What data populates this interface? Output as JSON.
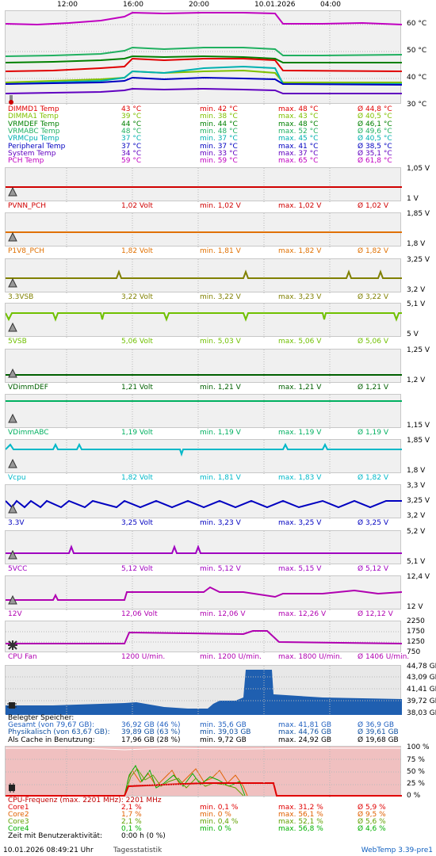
{
  "time_axis": [
    "12:00",
    "16:00",
    "20:00",
    "10.01.2026",
    "04:00"
  ],
  "temp": {
    "y_labels": [
      "60 °C",
      "50 °C",
      "40 °C",
      "30 °C"
    ],
    "rows": [
      {
        "name": "DIMMD1 Temp",
        "cur": "43 °C",
        "min": "min. 42 °C",
        "max": "max. 48 °C",
        "avg": "Ø 44,8 °C",
        "color": "#e00000"
      },
      {
        "name": "DIMMA1 Temp",
        "cur": "39 °C",
        "min": "min. 38 °C",
        "max": "max. 43 °C",
        "avg": "Ø 40,5 °C",
        "color": "#7fc000"
      },
      {
        "name": "VRMDEF Temp",
        "cur": "44 °C",
        "min": "min. 44 °C",
        "max": "max. 48 °C",
        "avg": "Ø 46,1 °C",
        "color": "#008000"
      },
      {
        "name": "VRMABC Temp",
        "cur": "48 °C",
        "min": "min. 48 °C",
        "max": "max. 52 °C",
        "avg": "Ø 49,6 °C",
        "color": "#20b060"
      },
      {
        "name": "VRMCpu Temp",
        "cur": "37 °C",
        "min": "min. 37 °C",
        "max": "max. 45 °C",
        "avg": "Ø 40,5 °C",
        "color": "#00b0b0"
      },
      {
        "name": "Peripheral Temp",
        "cur": "37 °C",
        "min": "min. 37 °C",
        "max": "max. 41 °C",
        "avg": "Ø 38,5 °C",
        "color": "#0000c0"
      },
      {
        "name": "System Temp",
        "cur": "34 °C",
        "min": "min. 33 °C",
        "max": "max. 37 °C",
        "avg": "Ø 35,1 °C",
        "color": "#6000c0"
      },
      {
        "name": "PCH Temp",
        "cur": "59 °C",
        "min": "min. 59 °C",
        "max": "max. 65 °C",
        "avg": "Ø 61,8 °C",
        "color": "#c000c0"
      }
    ]
  },
  "volts": [
    {
      "name": "PVNN_PCH",
      "cur": "1,02 Volt",
      "min": "min. 1,02 V",
      "max": "max. 1,02 V",
      "avg": "Ø 1,02 V",
      "color": "#d00000",
      "ytop": "1,05 V",
      "ybot": "1 V"
    },
    {
      "name": "P1V8_PCH",
      "cur": "1,82 Volt",
      "min": "min. 1,81 V",
      "max": "max. 1,82 V",
      "avg": "Ø 1,82 V",
      "color": "#e07000",
      "ytop": "1,85 V",
      "ybot": "1,8 V"
    },
    {
      "name": "3.3VSB",
      "cur": "3,22 Volt",
      "min": "min. 3,22 V",
      "max": "max. 3,23 V",
      "avg": "Ø 3,22 V",
      "color": "#808000",
      "ytop": "3,25 V",
      "ybot": "3,2 V"
    },
    {
      "name": "5VSB",
      "cur": "5,06 Volt",
      "min": "min. 5,03 V",
      "max": "max. 5,06 V",
      "avg": "Ø 5,06 V",
      "color": "#70c000",
      "ytop": "5,1 V",
      "ybot": "5 V"
    },
    {
      "name": "VDimmDEF",
      "cur": "1,21 Volt",
      "min": "min. 1,21 V",
      "max": "max. 1,21 V",
      "avg": "Ø 1,21 V",
      "color": "#006000",
      "ytop": "1,25 V",
      "ybot": "1,2 V"
    },
    {
      "name": "VDimmABC",
      "cur": "1,19 Volt",
      "min": "min. 1,19 V",
      "max": "max. 1,19 V",
      "avg": "Ø 1,19 V",
      "color": "#00b060",
      "ytop": "",
      "ybot": "1,15 V"
    },
    {
      "name": "Vcpu",
      "cur": "1,82 Volt",
      "min": "min. 1,81 V",
      "max": "max. 1,83 V",
      "avg": "Ø 1,82 V",
      "color": "#00b8c8",
      "ytop": "1,85 V",
      "ybot": "1,8 V"
    },
    {
      "name": "3.3V",
      "cur": "3,25 Volt",
      "min": "min. 3,23 V",
      "max": "max. 3,25 V",
      "avg": "Ø 3,25 V",
      "color": "#0000c0",
      "ytop": "3,3 V",
      "ymid": "3,25 V",
      "ybot": "3,2 V"
    },
    {
      "name": "5VCC",
      "cur": "5,12 Volt",
      "min": "min. 5,12 V",
      "max": "max. 5,15 V",
      "avg": "Ø 5,12 V",
      "color": "#a000c0",
      "ytop": "5,2 V",
      "ybot": "5,1 V"
    },
    {
      "name": "12V",
      "cur": "12,06 Volt",
      "min": "min. 12,06 V",
      "max": "max. 12,26 V",
      "avg": "Ø 12,12 V",
      "color": "#b000b0",
      "ytop": "12,4 V",
      "ybot": "12 V"
    }
  ],
  "fan": {
    "name": "CPU Fan",
    "cur": "1200 U/min.",
    "min": "min. 1200 U/min.",
    "max": "max. 1800 U/min.",
    "avg": "Ø 1406 U/min.",
    "color": "#b000b0",
    "y_labels": [
      "2250",
      "1750",
      "1250",
      "750"
    ]
  },
  "mem": {
    "y_labels": [
      "44,78 GB",
      "43,09 GB",
      "41,41 GB",
      "39,72 GB",
      "38,03 GB"
    ],
    "title": "Belegter Speicher:",
    "rows": [
      {
        "name": "Gesamt (von 79,67 GB):",
        "cur": "36,92 GB (46 %)",
        "min": "min. 35,6 GB",
        "max": "max. 41,81 GB",
        "avg": "Ø 36,9 GB",
        "color": "#2060c0"
      },
      {
        "name": "Physikalisch (von 63,67 GB):",
        "cur": "39,89 GB (63 %)",
        "min": "min. 39,03 GB",
        "max": "max. 44,76 GB",
        "avg": "Ø 39,61 GB",
        "color": "#1050a0"
      },
      {
        "name": "Als Cache in Benutzung:",
        "cur": "17,96 GB (28 %)",
        "min": "min. 9,72 GB",
        "max": "max. 24,92 GB",
        "avg": "Ø 19,68 GB",
        "color": "#000000"
      }
    ]
  },
  "cpu": {
    "y_labels": [
      "100 %",
      "75 %",
      "50 %",
      "25 %",
      "0 %"
    ],
    "freq": "CPU-Frequenz (max. 2201 MHz): 2201 MHz",
    "rows": [
      {
        "name": "Core1",
        "cur": "2,1 %",
        "min": "min. 0,1 %",
        "max": "max. 31,2 %",
        "avg": "Ø 5,9 %",
        "color": "#e00000"
      },
      {
        "name": "Core2",
        "cur": "1,7 %",
        "min": "min. 0 %",
        "max": "max. 56,1 %",
        "avg": "Ø 9,5 %",
        "color": "#e06000"
      },
      {
        "name": "Core3",
        "cur": "2,1 %",
        "min": "min. 0,4 %",
        "max": "max. 52,1 %",
        "avg": "Ø 5,6 %",
        "color": "#60a000"
      },
      {
        "name": "Core4",
        "cur": "0,1 %",
        "min": "min. 0 %",
        "max": "max. 56,8 %",
        "avg": "Ø 4,6 %",
        "color": "#00b000"
      }
    ],
    "activity_label": "Zeit mit Benutzeraktivität:",
    "activity_value": "0:00 h (0 %)"
  },
  "footer": {
    "datetime": "10.01.2026 08:49:21 Uhr",
    "stats": "Tagesstatistik",
    "version": "WebTemp 3.39-pre1"
  }
}
